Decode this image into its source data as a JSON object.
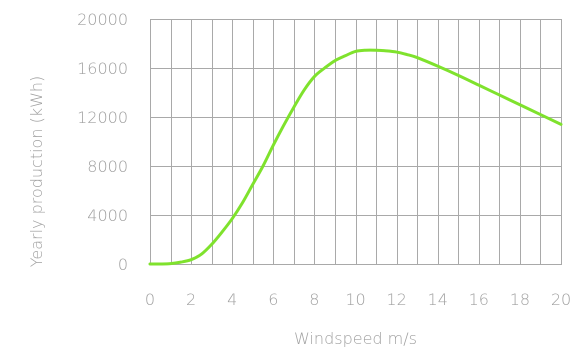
{
  "chart_data": {
    "type": "line",
    "title": "",
    "xlabel": "Windspeed m/s",
    "ylabel": "Yearly production (kWh)",
    "xlim": [
      0,
      20
    ],
    "ylim": [
      0,
      20000
    ],
    "x_ticks": [
      0,
      2,
      4,
      6,
      8,
      10,
      12,
      14,
      16,
      18,
      20
    ],
    "y_ticks": [
      0,
      4000,
      8000,
      12000,
      16000,
      20000
    ],
    "x_tick_labels": [
      "0",
      "2",
      "4",
      "6",
      "8",
      "10",
      "12",
      "14",
      "16",
      "18",
      "20"
    ],
    "y_tick_labels": [
      "0",
      "4000",
      "8000",
      "12000",
      "16000",
      "20000"
    ],
    "grid": true,
    "x_grid_step": 1,
    "y_grid_step": 4000,
    "legend": "none",
    "series": [
      {
        "color": "#7fe22d",
        "x": [
          0,
          0.5,
          1,
          1.5,
          2,
          2.5,
          3,
          3.5,
          4,
          4.5,
          5,
          5.5,
          6,
          6.5,
          7,
          7.5,
          8,
          8.5,
          9,
          9.5,
          10,
          10.5,
          11,
          11.5,
          12,
          12.5,
          13,
          14,
          15,
          16,
          17,
          18,
          19,
          20
        ],
        "values": [
          0,
          0,
          30,
          150,
          350,
          800,
          1600,
          2600,
          3700,
          5000,
          6500,
          8000,
          9700,
          11300,
          12800,
          14200,
          15300,
          16000,
          16600,
          17000,
          17350,
          17450,
          17450,
          17400,
          17300,
          17100,
          16850,
          16150,
          15400,
          14600,
          13800,
          13000,
          12200,
          11400
        ]
      }
    ]
  }
}
